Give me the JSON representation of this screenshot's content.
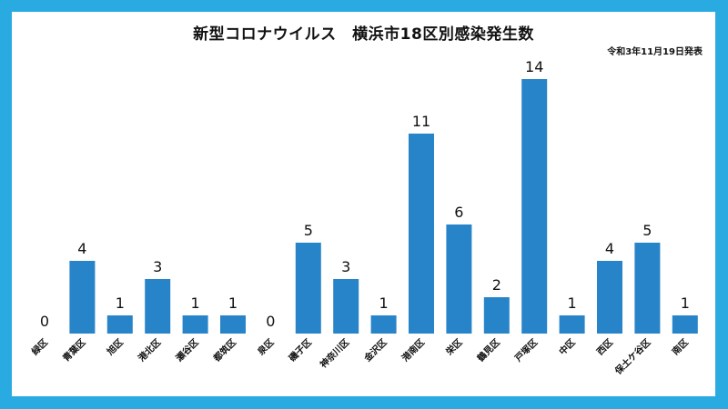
{
  "chart_data": {
    "type": "bar",
    "title": "新型コロナウイルス　横浜市18区別感染発生数",
    "subtitle": "令和3年11月19日発表",
    "categories": [
      "緑区",
      "青葉区",
      "旭区",
      "港北区",
      "瀬谷区",
      "都筑区",
      "泉区",
      "磯子区",
      "神奈川区",
      "金沢区",
      "港南区",
      "栄区",
      "鶴見区",
      "戸塚区",
      "中区",
      "西区",
      "保土ケ谷区",
      "南区"
    ],
    "values": [
      0,
      4,
      1,
      3,
      1,
      1,
      0,
      5,
      3,
      1,
      11,
      6,
      2,
      14,
      1,
      4,
      5,
      1
    ],
    "data_labels": [
      "0",
      "4",
      "1",
      "3",
      "1",
      "1",
      "0",
      "5",
      "3",
      "1",
      "11",
      "6",
      "2",
      "14",
      "1",
      "4",
      "5",
      "1"
    ],
    "ylim": [
      0,
      15
    ],
    "grid": false,
    "colors": {
      "bar": "#2884c9",
      "border": "#29abe2",
      "background": "#ffffff"
    }
  }
}
